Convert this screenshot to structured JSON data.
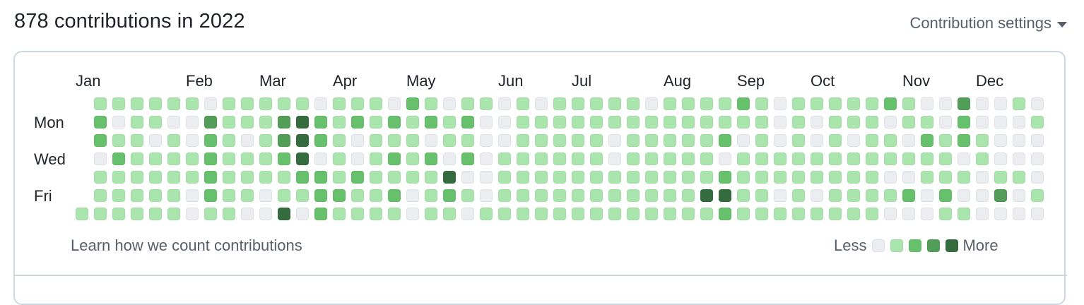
{
  "header": {
    "title": "878 contributions in 2022",
    "settings_label": "Contribution settings"
  },
  "calendar": {
    "year": 2022,
    "total_contributions": 878,
    "months": [
      {
        "label": "Jan",
        "col": 0
      },
      {
        "label": "Feb",
        "col": 6
      },
      {
        "label": "Mar",
        "col": 10
      },
      {
        "label": "Apr",
        "col": 14
      },
      {
        "label": "May",
        "col": 18
      },
      {
        "label": "Jun",
        "col": 23
      },
      {
        "label": "Jul",
        "col": 27
      },
      {
        "label": "Aug",
        "col": 32
      },
      {
        "label": "Sep",
        "col": 36
      },
      {
        "label": "Oct",
        "col": 40
      },
      {
        "label": "Nov",
        "col": 45
      },
      {
        "label": "Dec",
        "col": 49
      }
    ],
    "weekday_labels": [
      {
        "label": "Mon",
        "row": 1
      },
      {
        "label": "Wed",
        "row": 3
      },
      {
        "label": "Fri",
        "row": 5
      }
    ],
    "level_colors": [
      "#ebedf0",
      "#aae5ad",
      "#67c06b",
      "#529d57",
      "#356c3f"
    ],
    "weeks": [
      [
        null,
        null,
        null,
        null,
        null,
        null,
        1
      ],
      [
        1,
        2,
        2,
        0,
        1,
        1,
        1
      ],
      [
        1,
        0,
        1,
        2,
        1,
        1,
        1
      ],
      [
        1,
        1,
        1,
        1,
        1,
        1,
        1
      ],
      [
        1,
        1,
        0,
        1,
        1,
        1,
        1
      ],
      [
        1,
        0,
        1,
        1,
        1,
        1,
        1
      ],
      [
        1,
        0,
        0,
        1,
        1,
        0,
        0
      ],
      [
        0,
        3,
        2,
        2,
        2,
        2,
        1
      ],
      [
        1,
        1,
        1,
        1,
        1,
        1,
        1
      ],
      [
        1,
        1,
        0,
        1,
        1,
        1,
        0
      ],
      [
        1,
        1,
        1,
        1,
        1,
        0,
        0
      ],
      [
        1,
        3,
        3,
        2,
        1,
        1,
        4
      ],
      [
        1,
        4,
        4,
        4,
        2,
        1,
        0
      ],
      [
        0,
        2,
        2,
        0,
        2,
        2,
        2
      ],
      [
        1,
        1,
        1,
        1,
        1,
        2,
        1
      ],
      [
        1,
        2,
        0,
        0,
        2,
        1,
        1
      ],
      [
        1,
        1,
        1,
        1,
        1,
        1,
        1
      ],
      [
        0,
        2,
        1,
        2,
        1,
        2,
        1
      ],
      [
        2,
        1,
        1,
        1,
        1,
        0,
        0
      ],
      [
        1,
        2,
        0,
        2,
        1,
        1,
        1
      ],
      [
        0,
        1,
        1,
        0,
        4,
        2,
        1
      ],
      [
        1,
        2,
        1,
        2,
        0,
        1,
        0
      ],
      [
        1,
        0,
        0,
        0,
        0,
        0,
        1
      ],
      [
        0,
        0,
        0,
        1,
        1,
        1,
        1
      ],
      [
        1,
        1,
        1,
        1,
        1,
        1,
        1
      ],
      [
        0,
        1,
        1,
        1,
        1,
        1,
        1
      ],
      [
        1,
        1,
        1,
        1,
        1,
        1,
        1
      ],
      [
        1,
        1,
        1,
        1,
        1,
        1,
        1
      ],
      [
        1,
        1,
        1,
        1,
        1,
        1,
        1
      ],
      [
        1,
        1,
        0,
        0,
        1,
        1,
        1
      ],
      [
        1,
        1,
        1,
        1,
        1,
        1,
        1
      ],
      [
        0,
        1,
        1,
        1,
        1,
        1,
        1
      ],
      [
        1,
        1,
        1,
        1,
        1,
        1,
        1
      ],
      [
        1,
        1,
        1,
        1,
        1,
        1,
        1
      ],
      [
        1,
        1,
        1,
        1,
        1,
        4,
        1
      ],
      [
        1,
        1,
        2,
        0,
        2,
        4,
        2
      ],
      [
        2,
        1,
        0,
        1,
        1,
        1,
        1
      ],
      [
        1,
        1,
        1,
        1,
        1,
        1,
        1
      ],
      [
        0,
        0,
        0,
        1,
        1,
        0,
        1
      ],
      [
        1,
        1,
        1,
        1,
        1,
        1,
        1
      ],
      [
        1,
        0,
        0,
        1,
        1,
        0,
        1
      ],
      [
        1,
        1,
        1,
        1,
        1,
        1,
        1
      ],
      [
        1,
        1,
        0,
        1,
        1,
        1,
        1
      ],
      [
        1,
        1,
        1,
        1,
        1,
        1,
        1
      ],
      [
        2,
        0,
        1,
        1,
        0,
        1,
        0
      ],
      [
        1,
        1,
        0,
        1,
        0,
        2,
        0
      ],
      [
        0,
        1,
        2,
        1,
        1,
        0,
        0
      ],
      [
        0,
        0,
        1,
        1,
        1,
        2,
        1
      ],
      [
        3,
        2,
        2,
        0,
        1,
        0,
        1
      ],
      [
        0,
        0,
        1,
        1,
        0,
        0,
        0
      ],
      [
        0,
        0,
        0,
        0,
        1,
        3,
        0
      ],
      [
        1,
        0,
        0,
        0,
        1,
        0,
        0
      ],
      [
        0,
        1,
        0,
        0,
        0,
        1,
        0
      ]
    ]
  },
  "footer": {
    "learn_link": "Learn how we count contributions",
    "legend_less": "Less",
    "legend_more": "More"
  }
}
